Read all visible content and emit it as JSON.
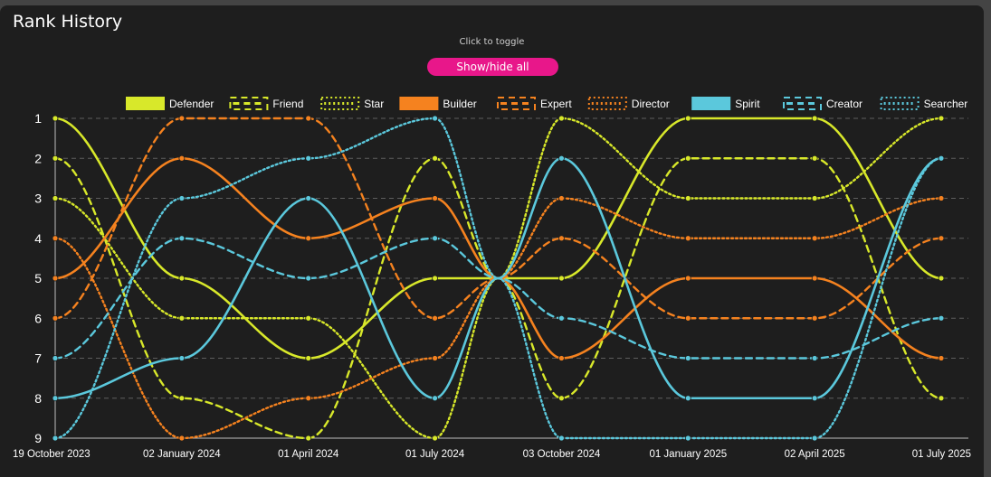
{
  "header": {
    "title": "Rank History",
    "hint": "Click to toggle",
    "toggle_label": "Show/hide all"
  },
  "chart_data": {
    "type": "line",
    "title": "Rank History",
    "x": [
      "19 October 2023",
      "02 January 2024",
      "01 April 2024",
      "01 July 2024",
      "03 October 2024",
      "01 January 2025",
      "02 April 2025",
      "01 July 2025"
    ],
    "y_ticks": [
      1,
      2,
      3,
      4,
      5,
      6,
      7,
      8,
      9
    ],
    "ylim": [
      1,
      9
    ],
    "y_inverted": true,
    "grid": true,
    "legend_position": "top",
    "series": [
      {
        "name": "Defender",
        "color": "#d8e82a",
        "style": "solid",
        "values": [
          1,
          5,
          7,
          5,
          5,
          1,
          1,
          5
        ],
        "mid": 5
      },
      {
        "name": "Friend",
        "color": "#d8e82a",
        "style": "dashed",
        "values": [
          2,
          8,
          9,
          2,
          8,
          2,
          2,
          8
        ],
        "mid": 5
      },
      {
        "name": "Star",
        "color": "#d8e82a",
        "style": "dotted",
        "values": [
          3,
          6,
          6,
          9,
          1,
          3,
          3,
          1
        ],
        "mid": 5
      },
      {
        "name": "Builder",
        "color": "#f5821f",
        "style": "solid",
        "values": [
          5,
          2,
          4,
          3,
          7,
          5,
          5,
          7
        ],
        "mid": 5
      },
      {
        "name": "Expert",
        "color": "#f5821f",
        "style": "dashed",
        "values": [
          6,
          1,
          1,
          6,
          4,
          6,
          6,
          4
        ],
        "mid": 5
      },
      {
        "name": "Director",
        "color": "#f5821f",
        "style": "dotted",
        "values": [
          4,
          9,
          8,
          7,
          3,
          4,
          4,
          3
        ],
        "mid": 5
      },
      {
        "name": "Spirit",
        "color": "#5bc8dc",
        "style": "solid",
        "values": [
          8,
          7,
          3,
          8,
          2,
          8,
          8,
          2
        ],
        "mid": 5
      },
      {
        "name": "Creator",
        "color": "#5bc8dc",
        "style": "dashed",
        "values": [
          7,
          4,
          5,
          4,
          6,
          7,
          7,
          6
        ],
        "mid": 5
      },
      {
        "name": "Searcher",
        "color": "#5bc8dc",
        "style": "dotted",
        "values": [
          9,
          3,
          2,
          1,
          9,
          9,
          9,
          2
        ],
        "mid": 5
      }
    ]
  }
}
